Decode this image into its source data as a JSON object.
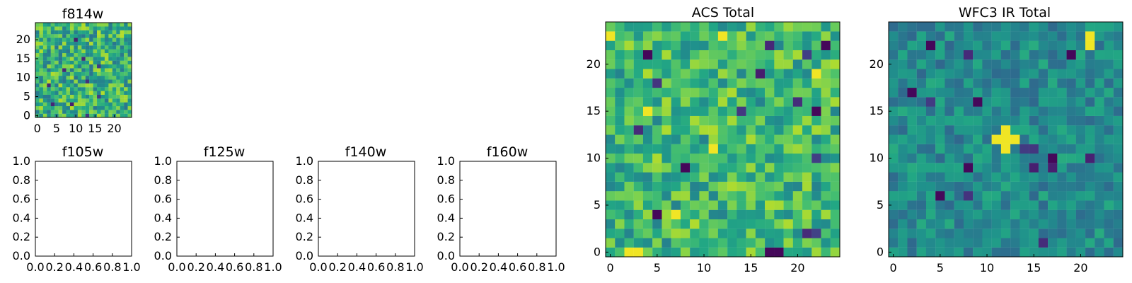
{
  "figure": {
    "background": "#ffffff",
    "colormap": "viridis"
  },
  "chart_data": [
    {
      "id": "f814w",
      "type": "heatmap",
      "title": "f814w",
      "rows": 25,
      "cols": 25,
      "xlim": [
        -0.5,
        24.5
      ],
      "ylim": [
        -0.5,
        24.5
      ],
      "xticks": [
        0,
        5,
        10,
        15,
        20
      ],
      "yticks": [
        0,
        5,
        10,
        15,
        20
      ],
      "xtick_labels": [
        "0",
        "5",
        "10",
        "15",
        "20"
      ],
      "ytick_labels": [
        "0",
        "5",
        "10",
        "15",
        "20"
      ],
      "seed": 814,
      "value_bias": 0.64,
      "value_spread": 0.25
    },
    {
      "id": "f105w",
      "type": "empty",
      "title": "f105w",
      "xlim": [
        0,
        1
      ],
      "ylim": [
        0,
        1
      ],
      "xticks": [
        0,
        0.2,
        0.4,
        0.6,
        0.8,
        1
      ],
      "yticks": [
        0,
        0.2,
        0.4,
        0.6,
        0.8,
        1
      ],
      "xtick_labels": [
        "0.0",
        "0.2",
        "0.4",
        "0.6",
        "0.8",
        "1.0"
      ],
      "ytick_labels": [
        "0.0",
        "0.2",
        "0.4",
        "0.6",
        "0.8",
        "1.0"
      ]
    },
    {
      "id": "f125w",
      "type": "empty",
      "title": "f125w",
      "xlim": [
        0,
        1
      ],
      "ylim": [
        0,
        1
      ],
      "xticks": [
        0,
        0.2,
        0.4,
        0.6,
        0.8,
        1
      ],
      "yticks": [
        0,
        0.2,
        0.4,
        0.6,
        0.8,
        1
      ],
      "xtick_labels": [
        "0.0",
        "0.2",
        "0.4",
        "0.6",
        "0.8",
        "1.0"
      ],
      "ytick_labels": [
        "0.0",
        "0.2",
        "0.4",
        "0.6",
        "0.8",
        "1.0"
      ]
    },
    {
      "id": "f140w",
      "type": "empty",
      "title": "f140w",
      "xlim": [
        0,
        1
      ],
      "ylim": [
        0,
        1
      ],
      "xticks": [
        0,
        0.2,
        0.4,
        0.6,
        0.8,
        1
      ],
      "yticks": [
        0,
        0.2,
        0.4,
        0.6,
        0.8,
        1
      ],
      "xtick_labels": [
        "0.0",
        "0.2",
        "0.4",
        "0.6",
        "0.8",
        "1.0"
      ],
      "ytick_labels": [
        "0.0",
        "0.2",
        "0.4",
        "0.6",
        "0.8",
        "1.0"
      ]
    },
    {
      "id": "f160w",
      "type": "empty",
      "title": "f160w",
      "xlim": [
        0,
        1
      ],
      "ylim": [
        0,
        1
      ],
      "xticks": [
        0,
        0.2,
        0.4,
        0.6,
        0.8,
        1
      ],
      "yticks": [
        0,
        0.2,
        0.4,
        0.6,
        0.8,
        1
      ],
      "xtick_labels": [
        "0.0",
        "0.2",
        "0.4",
        "0.6",
        "0.8",
        "1.0"
      ],
      "ytick_labels": [
        "0.0",
        "0.2",
        "0.4",
        "0.6",
        "0.8",
        "1.0"
      ]
    },
    {
      "id": "acs-total",
      "type": "heatmap",
      "title": "ACS Total",
      "rows": 25,
      "cols": 25,
      "xlim": [
        -0.5,
        24.5
      ],
      "ylim": [
        -0.5,
        24.5
      ],
      "xticks": [
        0,
        5,
        10,
        15,
        20
      ],
      "yticks": [
        0,
        5,
        10,
        15,
        20
      ],
      "xtick_labels": [
        "0",
        "5",
        "10",
        "15",
        "20"
      ],
      "ytick_labels": [
        "0",
        "5",
        "10",
        "15",
        "20"
      ],
      "seed": 321,
      "value_bias": 0.66,
      "value_spread": 0.22,
      "dark_pixels": [
        [
          0,
          17
        ],
        [
          0,
          18
        ],
        [
          2,
          22
        ],
        [
          4,
          5
        ],
        [
          9,
          8
        ],
        [
          15,
          22
        ],
        [
          21,
          4
        ],
        [
          22,
          23
        ]
      ],
      "bright_pixels": [
        [
          0,
          2
        ],
        [
          0,
          3
        ],
        [
          4,
          7
        ],
        [
          11,
          11
        ],
        [
          15,
          4
        ],
        [
          19,
          22
        ],
        [
          23,
          0
        ],
        [
          23,
          12
        ]
      ]
    },
    {
      "id": "wfc3-ir-total",
      "type": "heatmap",
      "title": "WFC3 IR Total",
      "rows": 25,
      "cols": 25,
      "xlim": [
        -0.5,
        24.5
      ],
      "ylim": [
        -0.5,
        24.5
      ],
      "xticks": [
        0,
        5,
        10,
        15,
        20
      ],
      "yticks": [
        0,
        5,
        10,
        15,
        20
      ],
      "xtick_labels": [
        "0",
        "5",
        "10",
        "15",
        "20"
      ],
      "ytick_labels": [
        "0",
        "5",
        "10",
        "15",
        "20"
      ],
      "seed": 1602,
      "value_bias": 0.48,
      "value_spread": 0.14,
      "dark_pixels": [
        [
          10,
          17
        ],
        [
          9,
          8
        ],
        [
          11,
          14
        ],
        [
          16,
          9
        ],
        [
          17,
          2
        ],
        [
          22,
          4
        ],
        [
          21,
          19
        ],
        [
          6,
          5
        ]
      ],
      "bright_pixels": [
        [
          12,
          12
        ],
        [
          12,
          13
        ],
        [
          12,
          11
        ],
        [
          13,
          12
        ],
        [
          11,
          12
        ],
        [
          22,
          21
        ],
        [
          23,
          21
        ]
      ]
    }
  ]
}
